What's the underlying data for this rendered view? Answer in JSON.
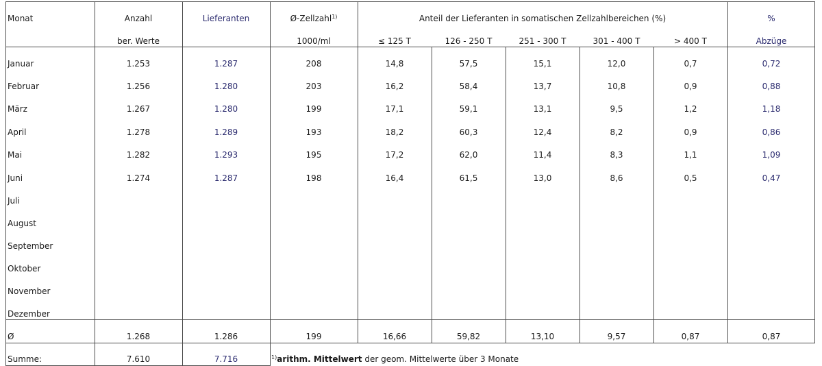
{
  "header": {
    "monat": "Monat",
    "anzahl": "Anzahl",
    "anzahl_sub": "ber. Werte",
    "lieferanten": "Lieferanten",
    "zellzahl": "Ø-Zellzahl",
    "zellzahl_sup": "1)",
    "zellzahl_sub": "1000/ml",
    "anteil": "Anteil der Lieferanten in somatischen Zellzahlbereichen (%)",
    "ranges": [
      "≤ 125 T",
      "126 - 250 T",
      "251 - 300  T",
      "301 - 400 T",
      "> 400 T"
    ],
    "abzuege": "%",
    "abzuege_sub": "Abzüge"
  },
  "rows": [
    {
      "monat": "Januar",
      "anzahl": "1.253",
      "lieferanten": "1.287",
      "zellzahl": "208",
      "r1": "14,8",
      "r2": "57,5",
      "r3": "15,1",
      "r4": "12,0",
      "r5": "0,7",
      "abzuege": "0,72"
    },
    {
      "monat": "Februar",
      "anzahl": "1.256",
      "lieferanten": "1.280",
      "zellzahl": "203",
      "r1": "16,2",
      "r2": "58,4",
      "r3": "13,7",
      "r4": "10,8",
      "r5": "0,9",
      "abzuege": "0,88"
    },
    {
      "monat": "März",
      "anzahl": "1.267",
      "lieferanten": "1.280",
      "zellzahl": "199",
      "r1": "17,1",
      "r2": "59,1",
      "r3": "13,1",
      "r4": "9,5",
      "r5": "1,2",
      "abzuege": "1,18"
    },
    {
      "monat": "April",
      "anzahl": "1.278",
      "lieferanten": "1.289",
      "zellzahl": "193",
      "r1": "18,2",
      "r2": "60,3",
      "r3": "12,4",
      "r4": "8,2",
      "r5": "0,9",
      "abzuege": "0,86"
    },
    {
      "monat": "Mai",
      "anzahl": "1.282",
      "lieferanten": "1.293",
      "zellzahl": "195",
      "r1": "17,2",
      "r2": "62,0",
      "r3": "11,4",
      "r4": "8,3",
      "r5": "1,1",
      "abzuege": "1,09"
    },
    {
      "monat": "Juni",
      "anzahl": "1.274",
      "lieferanten": "1.287",
      "zellzahl": "198",
      "r1": "16,4",
      "r2": "61,5",
      "r3": "13,0",
      "r4": "8,6",
      "r5": "0,5",
      "abzuege": "0,47"
    },
    {
      "monat": "Juli"
    },
    {
      "monat": "August"
    },
    {
      "monat": "September"
    },
    {
      "monat": "Oktober"
    },
    {
      "monat": "November"
    },
    {
      "monat": "Dezember"
    }
  ],
  "avg": {
    "monat": "Ø",
    "anzahl": "1.268",
    "lieferanten": "1.286",
    "zellzahl": "199",
    "r1": "16,66",
    "r2": "59,82",
    "r3": "13,10",
    "r4": "9,57",
    "r5": "0,87",
    "abzuege": "0,87"
  },
  "sum": {
    "label": "Summe:",
    "anzahl": "7.610",
    "lieferanten": "7.716"
  },
  "footnote": {
    "sup": "1)",
    "bold": "arithm. Mittelwert",
    "rest": " der geom. Mittelwerte über 3 Monate"
  },
  "colors": {
    "text": "#1a1a1a",
    "blue": "#2a2a6e",
    "lines": "#4a4a4a"
  }
}
